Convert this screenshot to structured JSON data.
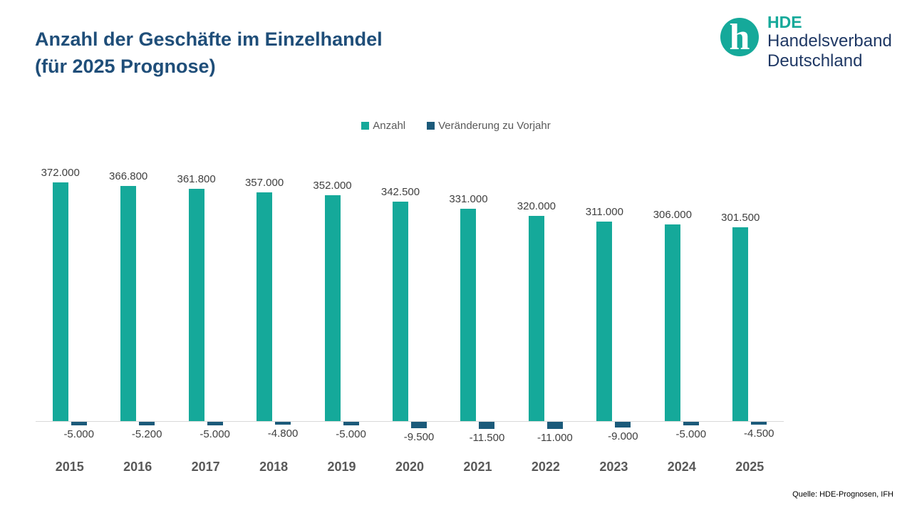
{
  "header": {
    "title_line1": "Anzahl der Geschäfte im Einzelhandel",
    "title_line2": "(für 2025 Prognose)",
    "logo": {
      "abbr": "HDE",
      "line1": "Handelsverband",
      "line2": "Deutschland"
    }
  },
  "legend": [
    {
      "label": "Anzahl",
      "color": "#15A99A"
    },
    {
      "label": "Veränderung zu Vorjahr",
      "color": "#1B5A7A"
    }
  ],
  "source": "Quelle: HDE-Prognosen, IFH",
  "colors": {
    "title_navy": "#1F4E79",
    "logo_navy": "#1F3864",
    "teal": "#15A99A",
    "dark_blue": "#1B5A7A",
    "axis_gray": "#D9D9D9",
    "label_gray": "#404040",
    "year_gray": "#595959"
  },
  "chart_data": {
    "type": "bar",
    "title": "Anzahl der Geschäfte im Einzelhandel (für 2025 Prognose)",
    "categories": [
      "2015",
      "2016",
      "2017",
      "2018",
      "2019",
      "2020",
      "2021",
      "2022",
      "2023",
      "2024",
      "2025"
    ],
    "series": [
      {
        "name": "Anzahl",
        "color": "#15A99A",
        "values": [
          372000,
          366800,
          361800,
          357000,
          352000,
          342500,
          331000,
          320000,
          311000,
          306000,
          301500
        ],
        "labels": [
          "372.000",
          "366.800",
          "361.800",
          "357.000",
          "352.000",
          "342.500",
          "331.000",
          "320.000",
          "311.000",
          "306.000",
          "301.500"
        ]
      },
      {
        "name": "Veränderung zu Vorjahr",
        "color": "#1B5A7A",
        "values": [
          -5000,
          -5200,
          -5000,
          -4800,
          -5000,
          -9500,
          -11500,
          -11000,
          -9000,
          -5000,
          -4500
        ],
        "labels": [
          "-5.000",
          "-5.200",
          "-5.000",
          "-4.800",
          "-5.000",
          "-9.500",
          "-11.500",
          "-11.000",
          "-9.000",
          "-5.000",
          "-4.500"
        ]
      }
    ],
    "xlabel": "",
    "ylabel": "",
    "ylim": [
      -15000,
      390000
    ],
    "grid": false,
    "legend_position": "top",
    "value_labels": true
  }
}
